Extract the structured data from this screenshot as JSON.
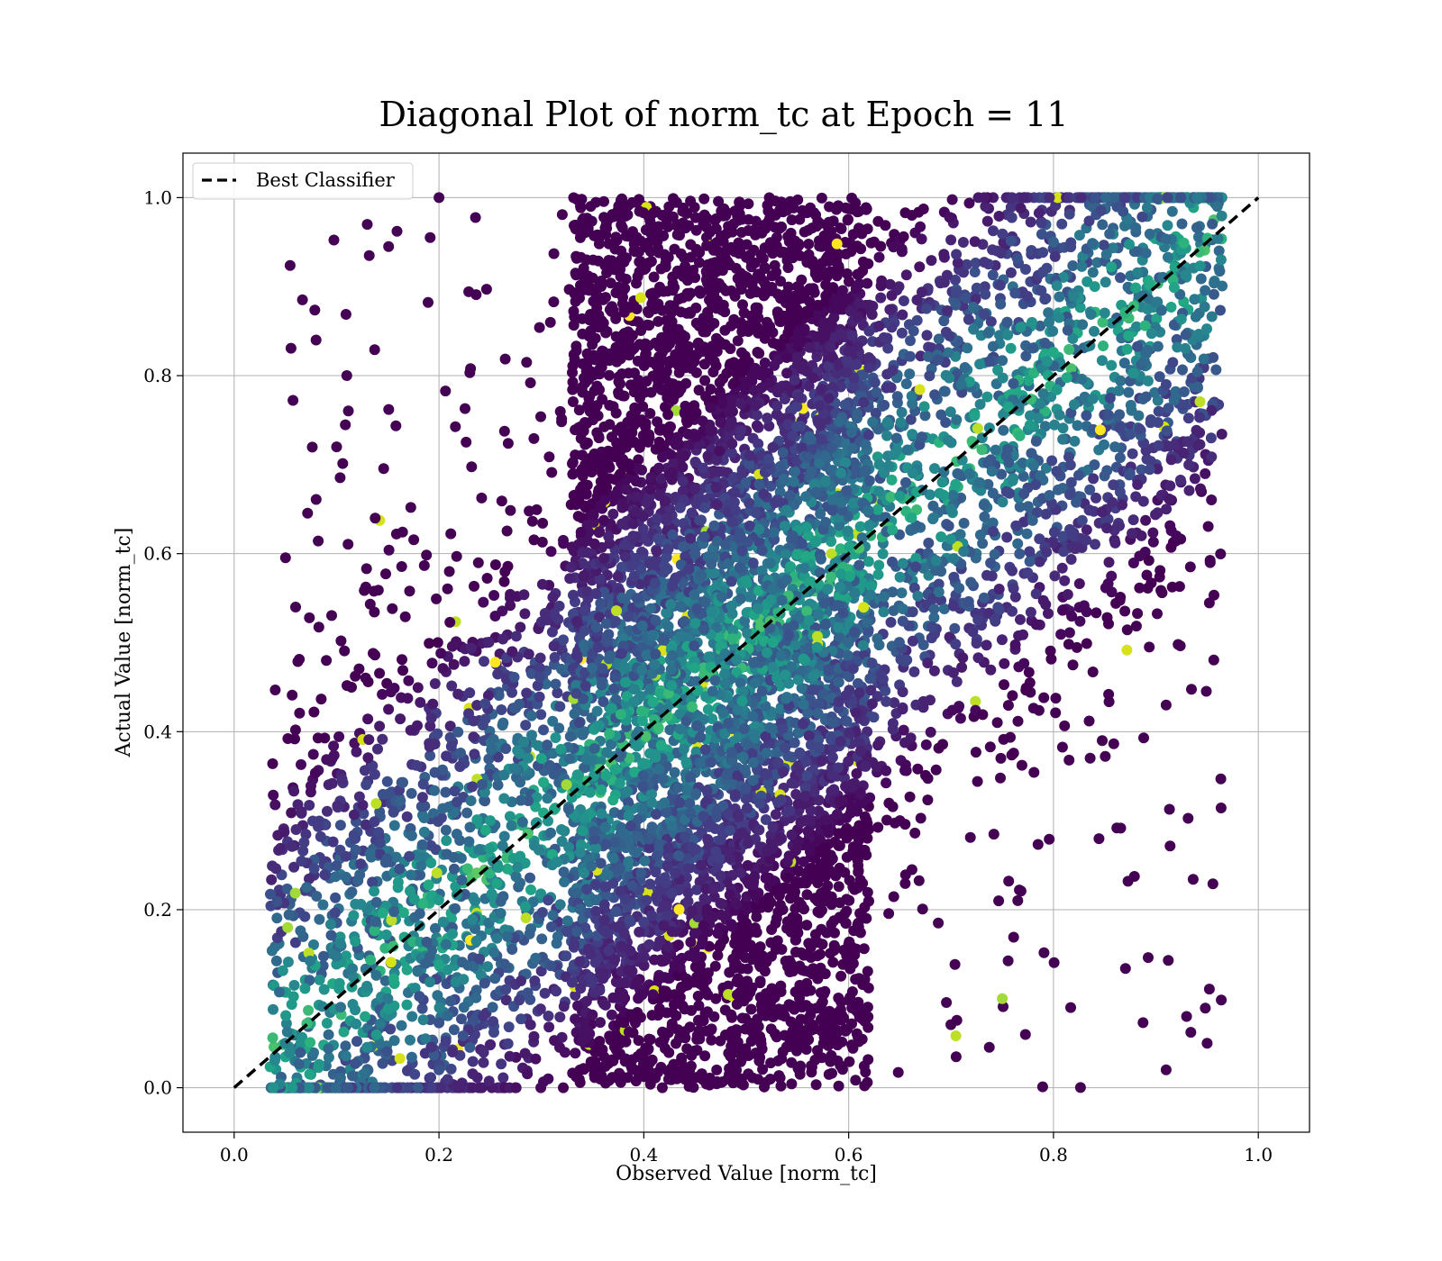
{
  "chart_data": {
    "type": "scatter",
    "title": "Diagonal Plot of norm_tc at Epoch = 11",
    "xlabel": "Observed Value [norm_tc]",
    "ylabel": "Actual Value [norm_tc]",
    "xlim": [
      -0.05,
      1.05
    ],
    "ylim": [
      -0.05,
      1.05
    ],
    "x_ticks": [
      "0.0",
      "0.2",
      "0.4",
      "0.6",
      "0.8",
      "1.0"
    ],
    "y_ticks": [
      "0.0",
      "0.2",
      "0.4",
      "0.6",
      "0.8",
      "1.0"
    ],
    "grid": true,
    "legend": {
      "placement": "upper-left",
      "entries": [
        "Best Classifier"
      ]
    },
    "colormap": "viridis",
    "series": [
      {
        "name": "Best Classifier",
        "kind": "line",
        "style": "dashed",
        "color": "#000000",
        "x": [
          0.0,
          1.0
        ],
        "y": [
          0.0,
          1.0
        ]
      }
    ],
    "points": [
      {
        "x": 0.08,
        "y": 0.84
      },
      {
        "x": 0.11,
        "y": 0.8
      },
      {
        "x": 0.06,
        "y": 0.54
      },
      {
        "x": 0.09,
        "y": 0.48
      },
      {
        "x": 0.1,
        "y": 0.72
      },
      {
        "x": 0.13,
        "y": 0.97
      },
      {
        "x": 0.2,
        "y": 1.0
      },
      {
        "x": 0.95,
        "y": 0.05
      },
      {
        "x": 0.93,
        "y": 0.08
      },
      {
        "x": 0.91,
        "y": 0.02
      },
      {
        "x": 0.92,
        "y": 0.62
      },
      {
        "x": 0.91,
        "y": 0.43
      },
      {
        "x": 0.2,
        "y": 0.02
      },
      {
        "x": 0.3,
        "y": 0.37
      },
      {
        "x": 0.53,
        "y": 0.46
      },
      {
        "x": 0.71,
        "y": 0.79
      },
      {
        "x": 0.91,
        "y": 0.79
      },
      {
        "x": 0.96,
        "y": 0.99
      },
      {
        "x": 0.37,
        "y": 0.03
      },
      {
        "x": 0.5,
        "y": 0.2
      },
      {
        "x": 0.55,
        "y": 0.9
      },
      {
        "x": 0.65,
        "y": 0.3
      },
      {
        "x": 0.75,
        "y": 0.1
      },
      {
        "x": 0.45,
        "y": 0.6
      },
      {
        "x": 0.8,
        "y": 0.95
      },
      {
        "x": 0.25,
        "y": 0.3
      },
      {
        "x": 0.15,
        "y": 0.1
      },
      {
        "x": 0.35,
        "y": 0.7
      },
      {
        "x": 0.6,
        "y": 0.5
      },
      {
        "x": 0.7,
        "y": 0.65
      },
      {
        "x": 0.86,
        "y": 0.72
      },
      {
        "x": 0.42,
        "y": 0.32
      },
      {
        "x": 0.05,
        "y": 0.05
      },
      {
        "x": 0.28,
        "y": 0.12
      },
      {
        "x": 0.48,
        "y": 0.98
      },
      {
        "x": 0.62,
        "y": 0.85
      }
    ]
  }
}
